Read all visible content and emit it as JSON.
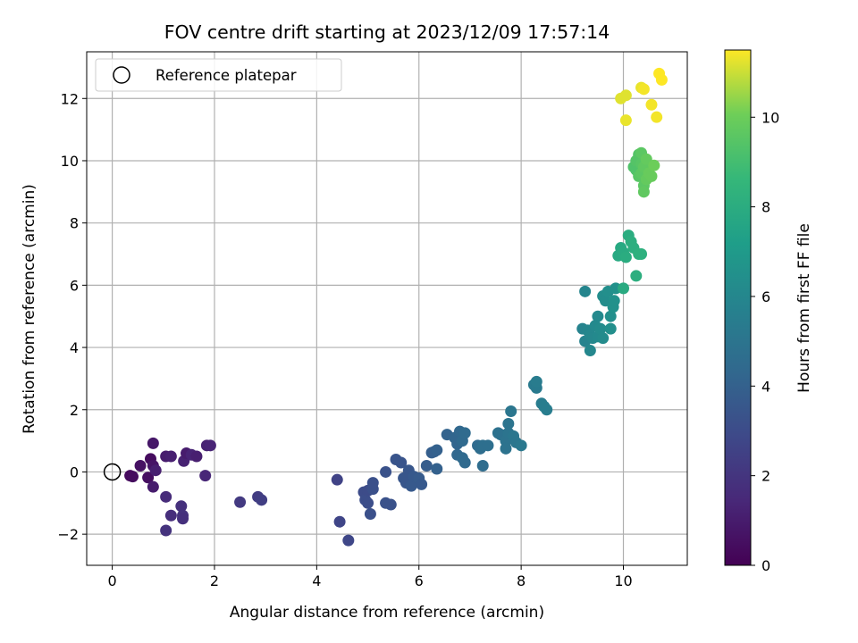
{
  "chart_data": {
    "type": "scatter",
    "title": "FOV centre drift starting at 2023/12/09 17:57:14",
    "xlabel": "Angular distance from reference (arcmin)",
    "ylabel": "Rotation from reference (arcmin)",
    "xlim": [
      -0.5,
      11.25
    ],
    "ylim": [
      -3.0,
      13.5
    ],
    "xticks": [
      "0",
      "2",
      "4",
      "6",
      "8",
      "10"
    ],
    "yticks": [
      "−2",
      "0",
      "2",
      "4",
      "6",
      "8",
      "10",
      "12"
    ],
    "grid": true,
    "legend": {
      "position": "top-left",
      "entries": [
        "Reference platepar"
      ]
    },
    "reference_point": {
      "x": 0,
      "y": 0
    },
    "colorbar": {
      "label": "Hours from first FF file",
      "range": [
        0,
        11.5
      ],
      "ticks": [
        "0",
        "2",
        "4",
        "6",
        "8",
        "10"
      ],
      "colormap": "viridis"
    },
    "points": [
      [
        0.35,
        -0.12,
        0.3
      ],
      [
        0.4,
        -0.15,
        0.4
      ],
      [
        0.55,
        0.2,
        0.6
      ],
      [
        0.7,
        -0.18,
        0.5
      ],
      [
        0.75,
        0.42,
        0.4
      ],
      [
        0.8,
        0.2,
        0.7
      ],
      [
        0.8,
        0.92,
        0.8
      ],
      [
        0.8,
        -0.48,
        1.0
      ],
      [
        0.85,
        0.05,
        1.1
      ],
      [
        1.05,
        0.5,
        1.0
      ],
      [
        1.15,
        0.5,
        1.1
      ],
      [
        1.4,
        0.35,
        1.2
      ],
      [
        1.45,
        0.6,
        1.0
      ],
      [
        1.55,
        0.55,
        1.3
      ],
      [
        1.65,
        0.5,
        1.1
      ],
      [
        1.85,
        0.85,
        1.2
      ],
      [
        1.92,
        0.85,
        1.3
      ],
      [
        1.82,
        -0.12,
        1.4
      ],
      [
        1.05,
        -0.8,
        1.6
      ],
      [
        1.15,
        -1.4,
        1.7
      ],
      [
        1.35,
        -1.1,
        1.8
      ],
      [
        1.38,
        -1.4,
        1.9
      ],
      [
        1.38,
        -1.5,
        1.8
      ],
      [
        1.05,
        -1.88,
        1.9
      ],
      [
        2.5,
        -0.97,
        2.2
      ],
      [
        2.85,
        -0.8,
        2.3
      ],
      [
        2.92,
        -0.9,
        2.4
      ],
      [
        4.4,
        -0.25,
        2.6
      ],
      [
        4.45,
        -1.6,
        2.7
      ],
      [
        4.62,
        -2.2,
        2.8
      ],
      [
        4.92,
        -0.65,
        3.0
      ],
      [
        4.95,
        -0.9,
        3.1
      ],
      [
        5.0,
        -1.0,
        3.1
      ],
      [
        5.05,
        -1.35,
        3.2
      ],
      [
        5.0,
        -0.6,
        3.0
      ],
      [
        5.1,
        -0.55,
        3.2
      ],
      [
        5.1,
        -0.35,
        3.2
      ],
      [
        5.35,
        0.0,
        3.3
      ],
      [
        5.35,
        -1.0,
        3.3
      ],
      [
        5.45,
        -1.05,
        3.3
      ],
      [
        5.55,
        0.4,
        3.4
      ],
      [
        5.65,
        0.3,
        3.4
      ],
      [
        5.7,
        -0.2,
        3.5
      ],
      [
        5.75,
        -0.35,
        3.5
      ],
      [
        5.8,
        0.05,
        3.5
      ],
      [
        5.85,
        -0.45,
        3.6
      ],
      [
        5.9,
        -0.15,
        3.6
      ],
      [
        6.0,
        -0.2,
        3.7
      ],
      [
        6.05,
        -0.4,
        3.6
      ],
      [
        6.15,
        0.2,
        3.8
      ],
      [
        6.25,
        0.62,
        3.9
      ],
      [
        6.3,
        0.65,
        3.9
      ],
      [
        6.35,
        0.7,
        4.0
      ],
      [
        6.35,
        0.1,
        4.0
      ],
      [
        6.55,
        1.2,
        4.1
      ],
      [
        6.7,
        1.1,
        4.2
      ],
      [
        6.75,
        0.9,
        4.2
      ],
      [
        6.75,
        0.55,
        4.3
      ],
      [
        6.8,
        1.3,
        4.3
      ],
      [
        6.85,
        1.0,
        4.4
      ],
      [
        6.85,
        0.45,
        4.4
      ],
      [
        6.9,
        0.3,
        4.4
      ],
      [
        6.9,
        1.25,
        4.5
      ],
      [
        7.15,
        0.85,
        4.5
      ],
      [
        7.2,
        0.75,
        4.6
      ],
      [
        7.25,
        0.2,
        4.6
      ],
      [
        7.25,
        0.85,
        4.7
      ],
      [
        7.35,
        0.85,
        4.7
      ],
      [
        7.55,
        1.25,
        4.8
      ],
      [
        7.6,
        1.2,
        4.8
      ],
      [
        7.7,
        1.0,
        4.9
      ],
      [
        7.7,
        0.75,
        4.9
      ],
      [
        7.75,
        1.55,
        5.0
      ],
      [
        7.75,
        1.25,
        5.0
      ],
      [
        7.8,
        1.95,
        5.1
      ],
      [
        7.85,
        1.15,
        5.1
      ],
      [
        7.9,
        0.95,
        5.1
      ],
      [
        8.0,
        0.85,
        5.2
      ],
      [
        8.25,
        2.8,
        5.3
      ],
      [
        8.3,
        2.7,
        5.3
      ],
      [
        8.3,
        2.9,
        5.4
      ],
      [
        8.4,
        2.2,
        5.4
      ],
      [
        8.45,
        2.1,
        5.5
      ],
      [
        8.5,
        2.0,
        5.5
      ],
      [
        9.2,
        4.6,
        5.8
      ],
      [
        9.25,
        4.2,
        5.8
      ],
      [
        9.25,
        5.8,
        5.9
      ],
      [
        9.3,
        4.55,
        5.9
      ],
      [
        9.35,
        4.4,
        6.0
      ],
      [
        9.35,
        3.9,
        6.0
      ],
      [
        9.4,
        4.3,
        6.0
      ],
      [
        9.45,
        4.7,
        6.1
      ],
      [
        9.5,
        5.0,
        6.1
      ],
      [
        9.5,
        4.35,
        6.1
      ],
      [
        9.55,
        4.6,
        6.2
      ],
      [
        9.6,
        4.3,
        6.2
      ],
      [
        9.6,
        5.65,
        6.3
      ],
      [
        9.65,
        5.5,
        6.3
      ],
      [
        9.7,
        5.8,
        6.4
      ],
      [
        9.75,
        5.0,
        6.4
      ],
      [
        9.75,
        4.6,
        6.4
      ],
      [
        9.8,
        5.3,
        6.5
      ],
      [
        9.82,
        5.5,
        6.5
      ],
      [
        9.85,
        5.9,
        6.5
      ],
      [
        9.9,
        6.95,
        7.8
      ],
      [
        9.95,
        7.2,
        7.8
      ],
      [
        10.0,
        7.05,
        7.9
      ],
      [
        10.0,
        5.9,
        7.9
      ],
      [
        10.05,
        6.9,
        8.0
      ],
      [
        10.1,
        7.6,
        8.0
      ],
      [
        10.15,
        7.4,
        8.1
      ],
      [
        10.2,
        7.2,
        8.1
      ],
      [
        10.25,
        6.3,
        8.1
      ],
      [
        10.3,
        7.0,
        8.2
      ],
      [
        10.35,
        7.0,
        8.2
      ],
      [
        10.2,
        9.8,
        9.3
      ],
      [
        10.25,
        9.7,
        9.3
      ],
      [
        10.25,
        10.0,
        9.4
      ],
      [
        10.3,
        10.2,
        9.4
      ],
      [
        10.3,
        9.5,
        9.5
      ],
      [
        10.35,
        9.9,
        9.5
      ],
      [
        10.35,
        10.25,
        9.6
      ],
      [
        10.35,
        9.6,
        9.6
      ],
      [
        10.4,
        9.2,
        9.6
      ],
      [
        10.4,
        9.0,
        9.7
      ],
      [
        10.4,
        9.8,
        9.7
      ],
      [
        10.45,
        10.05,
        9.8
      ],
      [
        10.45,
        9.4,
        9.8
      ],
      [
        10.5,
        9.6,
        9.9
      ],
      [
        10.55,
        9.5,
        9.9
      ],
      [
        10.6,
        9.85,
        10.0
      ],
      [
        9.95,
        12.0,
        11.2
      ],
      [
        10.05,
        12.1,
        11.2
      ],
      [
        10.05,
        11.3,
        11.3
      ],
      [
        10.35,
        12.35,
        11.3
      ],
      [
        10.4,
        12.3,
        11.4
      ],
      [
        10.55,
        11.8,
        11.4
      ],
      [
        10.65,
        11.4,
        11.4
      ],
      [
        10.7,
        12.8,
        11.5
      ],
      [
        10.75,
        12.6,
        11.5
      ]
    ]
  }
}
